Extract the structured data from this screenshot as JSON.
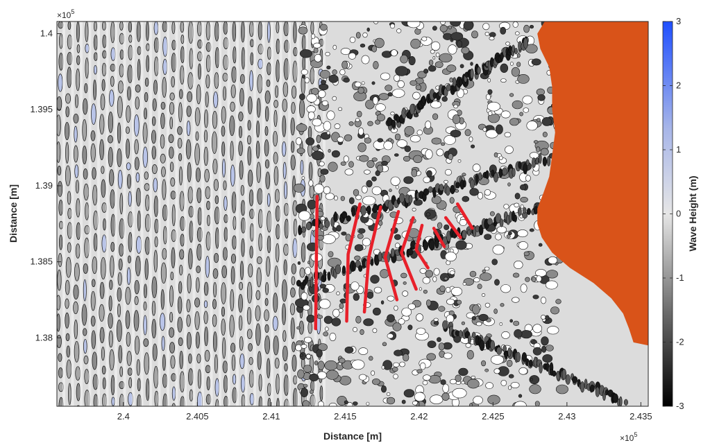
{
  "chart_data": {
    "type": "heatmap",
    "title": "",
    "xlabel": "Distance [m]",
    "ylabel": "Distance [m]",
    "x_exponent": "×10",
    "x_exponent_power": "5",
    "y_exponent": "×10",
    "y_exponent_power": "5",
    "xlim": [
      2.3955,
      2.4355
    ],
    "ylim": [
      1.3755,
      1.4008
    ],
    "x_ticks": [
      {
        "value": 2.4,
        "label": "2.4"
      },
      {
        "value": 2.405,
        "label": "2.405"
      },
      {
        "value": 2.41,
        "label": "2.41"
      },
      {
        "value": 2.415,
        "label": "2.415"
      },
      {
        "value": 2.42,
        "label": "2.42"
      },
      {
        "value": 2.425,
        "label": "2.425"
      },
      {
        "value": 2.43,
        "label": "2.43"
      },
      {
        "value": 2.435,
        "label": "2.435"
      }
    ],
    "y_ticks": [
      {
        "value": 1.38,
        "label": "1.38"
      },
      {
        "value": 1.385,
        "label": "1.385"
      },
      {
        "value": 1.39,
        "label": "1.39"
      },
      {
        "value": 1.395,
        "label": "1.395"
      },
      {
        "value": 1.4,
        "label": "1.4"
      }
    ],
    "colorbar": {
      "label": "Wave Height (m)",
      "range": [
        -3,
        3
      ],
      "ticks": [
        {
          "value": 3,
          "label": "3"
        },
        {
          "value": 2,
          "label": "2"
        },
        {
          "value": 1,
          "label": "1"
        },
        {
          "value": 0,
          "label": "0"
        },
        {
          "value": -1,
          "label": "-1"
        },
        {
          "value": -2,
          "label": "-2"
        },
        {
          "value": -3,
          "label": "-3"
        }
      ],
      "colors": {
        "min": "#000000",
        "mid": "#e6e6e6",
        "max": "#1f4fff"
      }
    },
    "land_color": "#d95319",
    "contour_color": "#000000",
    "wave_crest_color": "#e8202a",
    "land_boundary": [
      [
        2.4285,
        1.4008
      ],
      [
        2.428,
        1.4
      ],
      [
        2.4282,
        1.399
      ],
      [
        2.4288,
        1.3978
      ],
      [
        2.429,
        1.3965
      ],
      [
        2.429,
        1.395
      ],
      [
        2.4292,
        1.3935
      ],
      [
        2.429,
        1.392
      ],
      [
        2.4288,
        1.3906
      ],
      [
        2.4284,
        1.3895
      ],
      [
        2.428,
        1.3885
      ],
      [
        2.428,
        1.3875
      ],
      [
        2.4283,
        1.3866
      ],
      [
        2.429,
        1.3856
      ],
      [
        2.4302,
        1.3846
      ],
      [
        2.4318,
        1.3836
      ],
      [
        2.433,
        1.3826
      ],
      [
        2.4338,
        1.3816
      ],
      [
        2.4342,
        1.3806
      ],
      [
        2.4345,
        1.3797
      ],
      [
        2.4355,
        1.3795
      ]
    ],
    "wave_crest_lines": [
      {
        "points": [
          [
            2.4131,
            1.3893
          ],
          [
            2.413,
            1.3806
          ]
        ]
      },
      {
        "points": [
          [
            2.416,
            1.3888
          ],
          [
            2.4152,
            1.3855
          ],
          [
            2.4151,
            1.3811
          ]
        ]
      },
      {
        "points": [
          [
            2.4174,
            1.3886
          ],
          [
            2.4166,
            1.3853
          ],
          [
            2.4163,
            1.3817
          ]
        ]
      },
      {
        "points": [
          [
            2.4186,
            1.3883
          ],
          [
            2.4177,
            1.3853
          ],
          [
            2.4185,
            1.3825
          ]
        ]
      },
      {
        "points": [
          [
            2.4196,
            1.3879
          ],
          [
            2.4188,
            1.3856
          ],
          [
            2.4198,
            1.3832
          ]
        ]
      },
      {
        "points": [
          [
            2.4202,
            1.3874
          ],
          [
            2.4198,
            1.3858
          ],
          [
            2.4206,
            1.3846
          ]
        ]
      },
      {
        "points": [
          [
            2.421,
            1.3872
          ],
          [
            2.4217,
            1.386
          ]
        ]
      },
      {
        "points": [
          [
            2.4218,
            1.3879
          ],
          [
            2.4228,
            1.3866
          ]
        ]
      },
      {
        "points": [
          [
            2.4226,
            1.3888
          ],
          [
            2.4236,
            1.3872
          ]
        ]
      }
    ]
  }
}
